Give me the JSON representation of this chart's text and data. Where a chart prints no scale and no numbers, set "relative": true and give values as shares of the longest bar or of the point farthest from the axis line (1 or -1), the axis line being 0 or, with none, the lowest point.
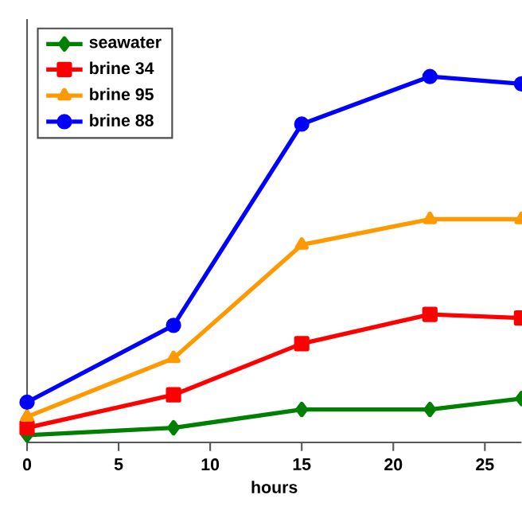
{
  "chart_data": {
    "type": "line",
    "xlabel": "hours",
    "relative": true,
    "x": [
      0,
      8,
      15,
      22,
      27
    ],
    "xlim": [
      0,
      27
    ],
    "xticks": [
      0,
      5,
      10,
      15,
      20,
      25
    ],
    "legend": "top left",
    "grid": false,
    "series": [
      {
        "name": "seawater",
        "color": "#008000",
        "marker": "diamond",
        "values": [
          0.02,
          0.04,
          0.09,
          0.09,
          0.12
        ]
      },
      {
        "name": "brine 34",
        "color": "#ff0000",
        "marker": "square",
        "values": [
          0.04,
          0.13,
          0.27,
          0.35,
          0.34
        ]
      },
      {
        "name": "brine 95",
        "color": "#ff9900",
        "marker": "triangle",
        "values": [
          0.07,
          0.23,
          0.54,
          0.61,
          0.61
        ]
      },
      {
        "name": "brine 88",
        "color": "#0000ff",
        "marker": "circle",
        "values": [
          0.11,
          0.32,
          0.87,
          1,
          0.98
        ]
      }
    ]
  }
}
